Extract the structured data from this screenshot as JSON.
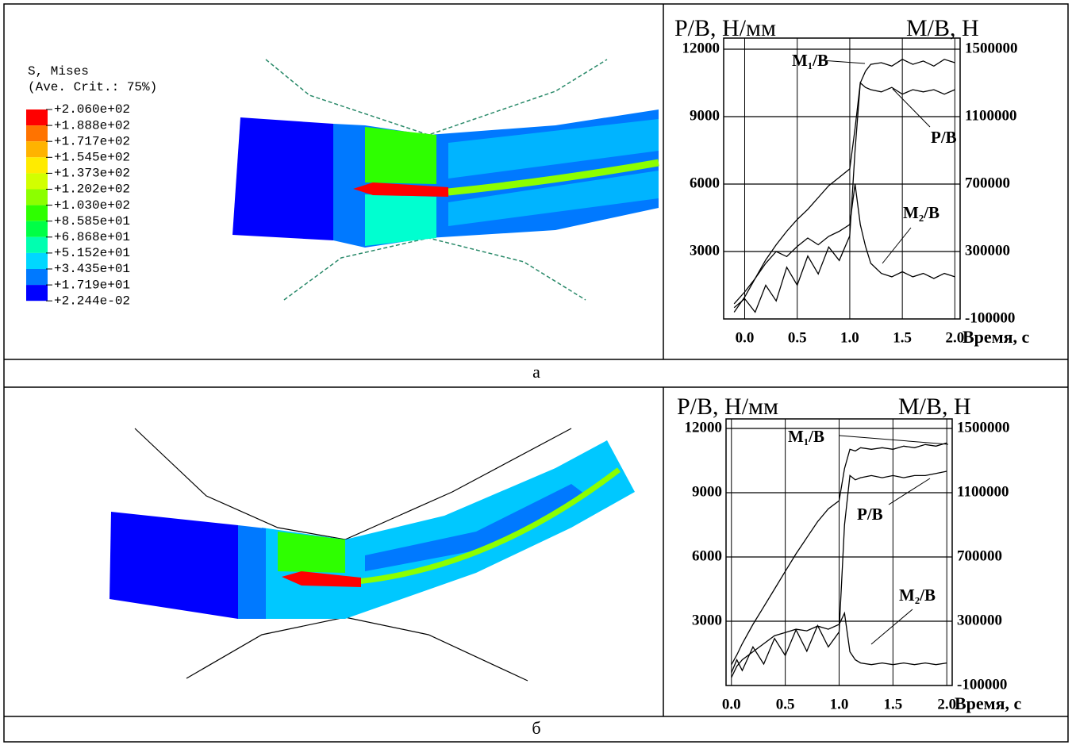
{
  "legend": {
    "title": "S, Mises",
    "subtitle": "(Ave. Crit.: 75%)",
    "labels": [
      "+2.060e+02",
      "+1.888e+02",
      "+1.717e+02",
      "+1.545e+02",
      "+1.373e+02",
      "+1.202e+02",
      "+1.030e+02",
      "+8.585e+01",
      "+6.868e+01",
      "+5.152e+01",
      "+3.435e+01",
      "+1.719e+01",
      "+2.244e-02"
    ],
    "colors": [
      "#ff0000",
      "#ff7300",
      "#ffb300",
      "#ffeb00",
      "#d2ff00",
      "#8cff00",
      "#2eff00",
      "#00ff46",
      "#00ffb0",
      "#00d7ff",
      "#0079ff",
      "#0000ff"
    ]
  },
  "captions": [
    "а",
    "б"
  ],
  "chart_data": [
    {
      "type": "line",
      "ylabel": "P/B, Н/мм",
      "y2label": "M/B, Н",
      "xlabel": "Время, с",
      "xlim": [
        -0.2,
        2.05
      ],
      "ylim": [
        0,
        12000
      ],
      "y2lim": [
        -100000,
        1500000
      ],
      "xticks": [
        {
          "value": 0,
          "label": "0.0"
        },
        0.5,
        {
          "value": 1,
          "label": "1.0"
        },
        1.5,
        {
          "value": 2,
          "label": "2.0"
        }
      ],
      "yticks": [
        3000,
        6000,
        9000,
        12000
      ],
      "y2ticks": [
        -100000,
        300000,
        700000,
        1100000,
        1500000
      ],
      "grid": true,
      "x": [
        -0.1,
        0,
        0.1,
        0.2,
        0.3,
        0.4,
        0.5,
        0.6,
        0.7,
        0.8,
        0.9,
        1.0,
        1.05,
        1.1,
        1.15,
        1.2,
        1.3,
        1.4,
        1.5,
        1.6,
        1.7,
        1.8,
        1.9,
        2.0
      ],
      "series": [
        {
          "name": "M₁/B",
          "color": "#000000",
          "axis": "y2",
          "values": [
            -10000,
            60000,
            140000,
            250000,
            340000,
            420000,
            490000,
            550000,
            620000,
            690000,
            740000,
            790000,
            1030000,
            1300000,
            1370000,
            1410000,
            1420000,
            1400000,
            1440000,
            1410000,
            1430000,
            1400000,
            1440000,
            1420000
          ]
        },
        {
          "name": "P/B",
          "color": "#000000",
          "values": [
            500,
            900,
            300,
            1500,
            800,
            2300,
            1500,
            2800,
            2000,
            3200,
            2600,
            3700,
            7500,
            10500,
            10300,
            10200,
            10100,
            10300,
            10000,
            10200,
            10100,
            10200,
            10000,
            10200
          ]
        },
        {
          "name": "M₂/B",
          "color": "#000000",
          "axis": "y2",
          "values": [
            -60000,
            30000,
            140000,
            230000,
            300000,
            270000,
            330000,
            380000,
            340000,
            390000,
            420000,
            460000,
            700000,
            460000,
            330000,
            230000,
            170000,
            150000,
            180000,
            150000,
            170000,
            140000,
            170000,
            150000
          ]
        }
      ]
    },
    {
      "type": "line",
      "ylabel": "P/B, Н/мм",
      "y2label": "M/B, Н",
      "xlabel": "Время, с",
      "xlim": [
        -0.05,
        2.05
      ],
      "ylim": [
        0,
        12000
      ],
      "y2lim": [
        -100000,
        1500000
      ],
      "xticks": [
        {
          "value": 0,
          "label": "0.0"
        },
        0.5,
        {
          "value": 1,
          "label": "1.0"
        },
        1.5,
        {
          "value": 2,
          "label": "2.0"
        }
      ],
      "yticks": [
        3000,
        6000,
        9000,
        12000
      ],
      "y2ticks": [
        -100000,
        300000,
        700000,
        1100000,
        1500000
      ],
      "grid": true,
      "x": [
        0,
        0.05,
        0.1,
        0.2,
        0.3,
        0.4,
        0.5,
        0.6,
        0.7,
        0.8,
        0.9,
        1.0,
        1.05,
        1.1,
        1.15,
        1.2,
        1.3,
        1.4,
        1.5,
        1.6,
        1.7,
        1.8,
        1.9,
        2.0
      ],
      "series": [
        {
          "name": "M₁/B",
          "color": "#000000",
          "axis": "y2",
          "values": [
            30000,
            90000,
            160000,
            280000,
            390000,
            500000,
            610000,
            720000,
            820000,
            920000,
            1000000,
            1050000,
            1250000,
            1370000,
            1360000,
            1380000,
            1370000,
            1380000,
            1370000,
            1390000,
            1380000,
            1400000,
            1390000,
            1410000
          ]
        },
        {
          "name": "P/B",
          "color": "#000000",
          "values": [
            600,
            1200,
            700,
            1800,
            1000,
            2200,
            1400,
            2600,
            1600,
            2800,
            1800,
            2500,
            7500,
            9800,
            9600,
            9700,
            9800,
            9700,
            9800,
            9700,
            9800,
            9800,
            9900,
            10000
          ]
        },
        {
          "name": "M₂/B",
          "color": "#000000",
          "axis": "y2",
          "values": [
            -50000,
            20000,
            60000,
            110000,
            160000,
            210000,
            230000,
            250000,
            240000,
            270000,
            250000,
            280000,
            350000,
            110000,
            60000,
            40000,
            30000,
            40000,
            30000,
            40000,
            30000,
            40000,
            30000,
            40000
          ]
        }
      ]
    }
  ]
}
